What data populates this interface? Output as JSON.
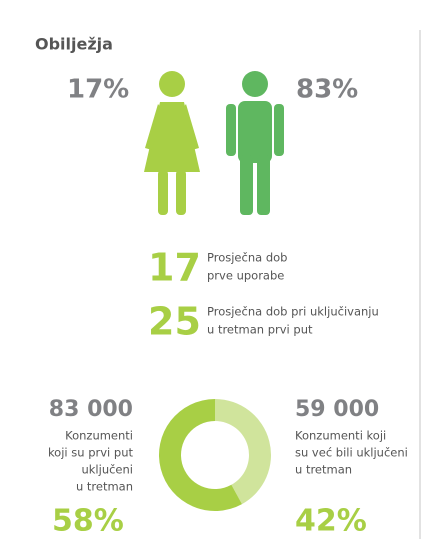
{
  "title": "Obilježja",
  "gender": {
    "female": {
      "value": 17,
      "label": "17%",
      "color": "#a8cf45"
    },
    "male": {
      "value": 83,
      "label": "83%",
      "color": "#5fb760"
    }
  },
  "ages": [
    {
      "value": "17",
      "lines": [
        "Prosječna dob",
        "prve uporabe"
      ]
    },
    {
      "value": "25",
      "lines": [
        "Prosječna dob pri uključivanju",
        "u tretman prvi put"
      ]
    }
  ],
  "consumers": [
    {
      "count": "83 000",
      "lines": [
        "Konzumenti",
        "koji su prvi put",
        "uključeni",
        "u tretman"
      ],
      "share": {
        "value": 58,
        "label": "58%"
      },
      "color": "#a8cf45"
    },
    {
      "count": "59 000",
      "lines": [
        "Konzumenti koji",
        "su već bili uključeni",
        "u tretman"
      ],
      "share": {
        "value": 42,
        "label": "42%"
      },
      "color": "#d0e49c"
    }
  ]
}
